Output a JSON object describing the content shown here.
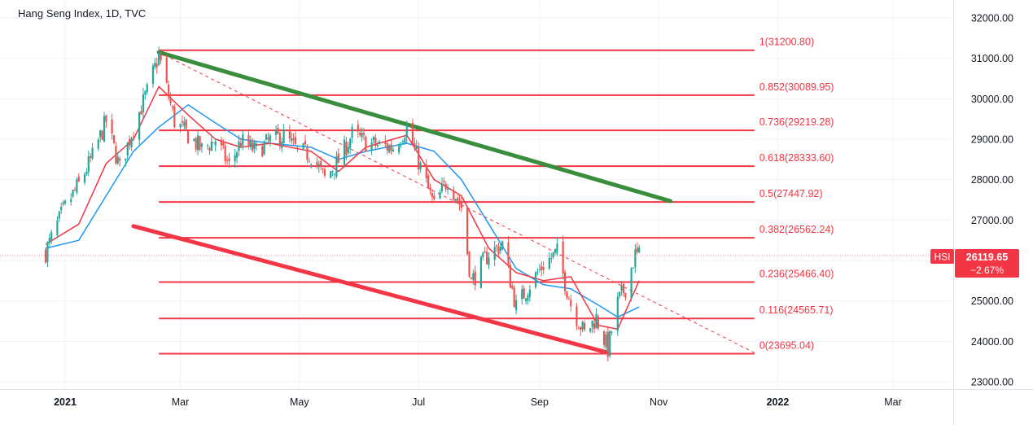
{
  "chart_data": {
    "type": "candlestick",
    "title": "Hang Seng Index, 1D, TVC",
    "symbol": "HSI",
    "last_price": "26119.65",
    "change_pct": "−2.67%",
    "y_range": [
      22900,
      32300
    ],
    "y_ticks": [
      "23000.00",
      "24000.00",
      "25000.00",
      "26000.00",
      "27000.00",
      "28000.00",
      "29000.00",
      "30000.00",
      "31000.00",
      "32000.00"
    ],
    "x_ticks": [
      {
        "label": "2021",
        "date": "2021-01-01"
      },
      {
        "label": "Mar",
        "date": "2021-03-01"
      },
      {
        "label": "May",
        "date": "2021-05-01"
      },
      {
        "label": "Jul",
        "date": "2021-07-01"
      },
      {
        "label": "Sep",
        "date": "2021-09-01"
      },
      {
        "label": "Nov",
        "date": "2021-11-01"
      },
      {
        "label": "2022",
        "date": "2022-01-01"
      },
      {
        "label": "Mar",
        "date": "2022-03-01"
      }
    ],
    "fib_start_date": "2021-02-18",
    "fib_end_date": "2021-12-20",
    "fib_levels": [
      {
        "label": "1(31200.80)",
        "value": 31200.8
      },
      {
        "label": "0.852(30089.95)",
        "value": 30089.95
      },
      {
        "label": "0.736(29219.28)",
        "value": 29219.28
      },
      {
        "label": "0.618(28333.60)",
        "value": 28333.6
      },
      {
        "label": "0.5(27447.92)",
        "value": 27447.92
      },
      {
        "label": "0.382(26562.24)",
        "value": 26562.24
      },
      {
        "label": "0.236(25466.40)",
        "value": 25466.4
      },
      {
        "label": "0.116(24565.71)",
        "value": 24565.71
      },
      {
        "label": "0(23695.04)",
        "value": 23695.04
      }
    ],
    "trendlines": [
      {
        "name": "upper-channel",
        "color": "#388e3c",
        "from": [
          "2021-02-18",
          31150
        ],
        "to": [
          "2021-11-07",
          27470
        ]
      },
      {
        "name": "lower-channel",
        "color": "#f23645",
        "from": [
          "2021-02-05",
          26850
        ],
        "to": [
          "2021-10-06",
          23720
        ]
      },
      {
        "name": "dashed-diagonal",
        "color": "#f23645",
        "from": [
          "2021-02-18",
          31150
        ],
        "to": [
          "2021-12-20",
          23720
        ]
      }
    ],
    "colors": {
      "up": "#26a69a",
      "down": "#ef5350",
      "fib": "#f23645",
      "ma_fast": "#f23645",
      "ma_slow": "#2196f3",
      "badge": "#f23645"
    },
    "ohlc_points": [
      [
        "2020-12-22",
        26200
      ],
      [
        "2020-12-31",
        27230
      ],
      [
        "2021-01-08",
        27880
      ],
      [
        "2021-01-15",
        28570
      ],
      [
        "2021-01-22",
        29450
      ],
      [
        "2021-01-29",
        28280
      ],
      [
        "2021-02-05",
        29290
      ],
      [
        "2021-02-12",
        30170
      ],
      [
        "2021-02-18",
        31080
      ],
      [
        "2021-02-26",
        29450
      ],
      [
        "2021-03-05",
        29100
      ],
      [
        "2021-03-12",
        28740
      ],
      [
        "2021-03-19",
        28990
      ],
      [
        "2021-03-26",
        28340
      ],
      [
        "2021-04-01",
        28940
      ],
      [
        "2021-04-09",
        28700
      ],
      [
        "2021-04-16",
        28970
      ],
      [
        "2021-04-23",
        29080
      ],
      [
        "2021-04-30",
        28720
      ],
      [
        "2021-05-07",
        28610
      ],
      [
        "2021-05-14",
        28030
      ],
      [
        "2021-05-21",
        28460
      ],
      [
        "2021-05-28",
        29120
      ],
      [
        "2021-06-04",
        28920
      ],
      [
        "2021-06-11",
        28840
      ],
      [
        "2021-06-18",
        28800
      ],
      [
        "2021-06-25",
        29290
      ],
      [
        "2021-07-02",
        28310
      ],
      [
        "2021-07-09",
        27340
      ],
      [
        "2021-07-16",
        28000
      ],
      [
        "2021-07-23",
        27320
      ],
      [
        "2021-07-28",
        25470
      ],
      [
        "2021-08-06",
        26180
      ],
      [
        "2021-08-13",
        26390
      ],
      [
        "2021-08-20",
        24850
      ],
      [
        "2021-08-27",
        25410
      ],
      [
        "2021-09-03",
        25900
      ],
      [
        "2021-09-10",
        26200
      ],
      [
        "2021-09-17",
        24920
      ],
      [
        "2021-09-24",
        24190
      ],
      [
        "2021-09-30",
        24580
      ],
      [
        "2021-10-06",
        23800
      ],
      [
        "2021-10-11",
        24960
      ],
      [
        "2021-10-15",
        25330
      ],
      [
        "2021-10-20",
        26140
      ],
      [
        "2021-10-22",
        26120
      ]
    ],
    "ma_fast_points": [
      [
        "2020-12-22",
        26400
      ],
      [
        "2021-01-08",
        26900
      ],
      [
        "2021-01-22",
        28400
      ],
      [
        "2021-02-05",
        29000
      ],
      [
        "2021-02-18",
        30300
      ],
      [
        "2021-03-05",
        29600
      ],
      [
        "2021-03-19",
        29000
      ],
      [
        "2021-04-01",
        28800
      ],
      [
        "2021-04-16",
        28900
      ],
      [
        "2021-05-07",
        28700
      ],
      [
        "2021-05-21",
        28200
      ],
      [
        "2021-06-04",
        28800
      ],
      [
        "2021-06-25",
        29100
      ],
      [
        "2021-07-09",
        28000
      ],
      [
        "2021-07-23",
        27600
      ],
      [
        "2021-08-06",
        26300
      ],
      [
        "2021-08-20",
        25700
      ],
      [
        "2021-09-03",
        25500
      ],
      [
        "2021-09-17",
        25600
      ],
      [
        "2021-10-01",
        24400
      ],
      [
        "2021-10-11",
        24300
      ],
      [
        "2021-10-22",
        25500
      ]
    ],
    "ma_slow_points": [
      [
        "2020-12-22",
        26300
      ],
      [
        "2021-01-08",
        26500
      ],
      [
        "2021-01-22",
        27600
      ],
      [
        "2021-02-05",
        28700
      ],
      [
        "2021-02-18",
        29300
      ],
      [
        "2021-03-05",
        29850
      ],
      [
        "2021-03-19",
        29400
      ],
      [
        "2021-04-01",
        29000
      ],
      [
        "2021-04-16",
        28900
      ],
      [
        "2021-05-07",
        28800
      ],
      [
        "2021-05-21",
        28500
      ],
      [
        "2021-06-04",
        28700
      ],
      [
        "2021-06-25",
        28900
      ],
      [
        "2021-07-09",
        28700
      ],
      [
        "2021-07-23",
        28000
      ],
      [
        "2021-08-06",
        26900
      ],
      [
        "2021-08-20",
        25800
      ],
      [
        "2021-09-03",
        25400
      ],
      [
        "2021-09-17",
        25300
      ],
      [
        "2021-10-01",
        24900
      ],
      [
        "2021-10-11",
        24600
      ],
      [
        "2021-10-22",
        24850
      ]
    ]
  }
}
